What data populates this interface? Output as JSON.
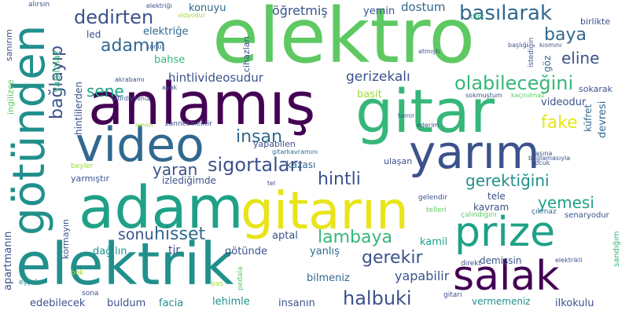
{
  "palette": {
    "deep_purple": "#440154",
    "dark_blue": "#3b528b",
    "blue": "#31688e",
    "teal": "#21908c",
    "green_teal": "#1fa187",
    "green": "#35b779",
    "light_green": "#5ec962",
    "lime": "#a0da39",
    "yellow": "#e8e419"
  },
  "words": [
    {
      "text": "elektro",
      "color": "#5ec962"
    },
    {
      "text": "anlamış",
      "color": "#440154"
    },
    {
      "text": "gitar",
      "color": "#35b779"
    },
    {
      "text": "video",
      "color": "#31688e"
    },
    {
      "text": "yarım",
      "color": "#3b528b"
    },
    {
      "text": "adam",
      "color": "#1fa187"
    },
    {
      "text": "gitarın",
      "color": "#e8e419"
    },
    {
      "text": "prize",
      "color": "#1fa187"
    },
    {
      "text": "elektrik",
      "color": "#21908c"
    },
    {
      "text": "salak",
      "color": "#440154"
    },
    {
      "text": "götünden",
      "color": "#21908c"
    },
    {
      "text": "dedirten",
      "color": "#3b528b"
    },
    {
      "text": "basılarak",
      "color": "#31688e"
    },
    {
      "text": "baya",
      "color": "#31688e"
    },
    {
      "text": "adamın",
      "color": "#31688e"
    },
    {
      "text": "eline",
      "color": "#3b528b"
    },
    {
      "text": "sene",
      "color": "#1fa187"
    },
    {
      "text": "olabileceğini",
      "color": "#35b779"
    },
    {
      "text": "bağlayıp",
      "color": "#3b528b"
    },
    {
      "text": "hintlivideosudur",
      "color": "#3b528b"
    },
    {
      "text": "gerizekalı",
      "color": "#3b528b"
    },
    {
      "text": "fake",
      "color": "#e8e419"
    },
    {
      "text": "insan",
      "color": "#31688e"
    },
    {
      "text": "yaran",
      "color": "#3b528b"
    },
    {
      "text": "sigortaları",
      "color": "#3b528b"
    },
    {
      "text": "hintli",
      "color": "#3b528b"
    },
    {
      "text": "gerektiğini",
      "color": "#21908c"
    },
    {
      "text": "yemesi",
      "color": "#1fa187"
    },
    {
      "text": "sonu",
      "color": "#3b528b"
    },
    {
      "text": "hisset",
      "color": "#31688e"
    },
    {
      "text": "lambaya",
      "color": "#35b779"
    },
    {
      "text": "gerekir",
      "color": "#3b528b"
    },
    {
      "text": "halbuki",
      "color": "#3b528b"
    },
    {
      "text": "yapabilir",
      "color": "#3b528b"
    },
    {
      "text": "öğretmiş",
      "color": "#3b528b"
    },
    {
      "text": "dostum",
      "color": "#31688e"
    },
    {
      "text": "yemin",
      "color": "#3b528b"
    },
    {
      "text": "konuyu",
      "color": "#31688e"
    },
    {
      "text": "elektriğe",
      "color": "#31688e"
    },
    {
      "text": "cihazları",
      "color": "#3b528b"
    },
    {
      "text": "led",
      "color": "#3b528b"
    },
    {
      "text": "bahse",
      "color": "#35b779"
    },
    {
      "text": "hintlilerden",
      "color": "#3b528b"
    },
    {
      "text": "yapılmaz",
      "color": "#35b779"
    },
    {
      "text": "sanırım",
      "color": "#3b528b"
    },
    {
      "text": "ingilizce",
      "color": "#5ec962"
    },
    {
      "text": "basit",
      "color": "#a0da39"
    },
    {
      "text": "videodur",
      "color": "#3b528b"
    },
    {
      "text": "devresi",
      "color": "#31688e"
    },
    {
      "text": "küfret",
      "color": "#31688e"
    },
    {
      "text": "göz",
      "color": "#31688e"
    },
    {
      "text": "sokarak",
      "color": "#3b528b"
    },
    {
      "text": "birlikte",
      "color": "#3b528b"
    },
    {
      "text": "istediğin",
      "color": "#3b528b"
    },
    {
      "text": "yarmıştır",
      "color": "#3b528b"
    },
    {
      "text": "izlediğimde",
      "color": "#3b528b"
    },
    {
      "text": "kazası",
      "color": "#31688e"
    },
    {
      "text": "yapabilen",
      "color": "#3b528b"
    },
    {
      "text": "ulaşan",
      "color": "#3b528b"
    },
    {
      "text": "tele",
      "color": "#3b528b"
    },
    {
      "text": "kavram",
      "color": "#3b528b"
    },
    {
      "text": "aptal",
      "color": "#3b528b"
    },
    {
      "text": "kamil",
      "color": "#1fa187"
    },
    {
      "text": "tir",
      "color": "#3b528b"
    },
    {
      "text": "götünde",
      "color": "#3b528b"
    },
    {
      "text": "dağılın",
      "color": "#21908c"
    },
    {
      "text": "yanlış",
      "color": "#31688e"
    },
    {
      "text": "demişsin",
      "color": "#3b528b"
    },
    {
      "text": "bilmeniz",
      "color": "#31688e"
    },
    {
      "text": "kormayın",
      "color": "#3b528b"
    },
    {
      "text": "apartmanın",
      "color": "#3b528b"
    },
    {
      "text": "edebilecek",
      "color": "#3b528b"
    },
    {
      "text": "buldum",
      "color": "#3b528b"
    },
    {
      "text": "facia",
      "color": "#21908c"
    },
    {
      "text": "lehimle",
      "color": "#21908c"
    },
    {
      "text": "insanın",
      "color": "#3b528b"
    },
    {
      "text": "vermemeniz",
      "color": "#21908c"
    },
    {
      "text": "ilkokulu",
      "color": "#3b528b"
    },
    {
      "text": "sandığım",
      "color": "#35b779"
    },
    {
      "text": "senaryodur",
      "color": "#3b528b"
    },
    {
      "text": "çıkmaz",
      "color": "#31688e"
    },
    {
      "text": "çalındığını",
      "color": "#5ec962"
    },
    {
      "text": "telleri",
      "color": "#5ec962"
    },
    {
      "text": "gelendir",
      "color": "#3b528b"
    },
    {
      "text": "direkt",
      "color": "#3b528b"
    },
    {
      "text": "gitarı",
      "color": "#3b528b"
    },
    {
      "text": "sona",
      "color": "#3b528b"
    },
    {
      "text": "pedala",
      "color": "#5ec962"
    },
    {
      "text": "bas",
      "color": "#a0da39"
    },
    {
      "text": "bok",
      "color": "#a0da39"
    },
    {
      "text": "eşşek",
      "color": "#21908c"
    },
    {
      "text": "elektrikli",
      "color": "#3b528b"
    },
    {
      "text": "beyler",
      "color": "#a0da39"
    },
    {
      "text": "tel",
      "color": "#3b528b"
    },
    {
      "text": "gitarkavramını",
      "color": "#31688e"
    },
    {
      "text": "başına",
      "color": "#3b528b"
    },
    {
      "text": "çocuk",
      "color": "#3b528b"
    },
    {
      "text": "bağlamasıyla",
      "color": "#3b528b"
    },
    {
      "text": "tamir",
      "color": "#31688e"
    },
    {
      "text": "ederim",
      "color": "#3b528b"
    },
    {
      "text": "sokmuştum",
      "color": "#3b528b"
    },
    {
      "text": "kaçınılmaz",
      "color": "#5ec962"
    },
    {
      "text": "lehim",
      "color": "#a0da39"
    },
    {
      "text": "zannetmektir",
      "color": "#3b528b"
    },
    {
      "text": "bitirdiyseniz",
      "color": "#3b528b"
    },
    {
      "text": "ayak",
      "color": "#3b528b"
    },
    {
      "text": "akrabamı",
      "color": "#3b528b"
    },
    {
      "text": "konu",
      "color": "#3b528b"
    },
    {
      "text": "atmıştı",
      "color": "#3b528b"
    },
    {
      "text": "kısmını",
      "color": "#3b528b"
    },
    {
      "text": "başlığı",
      "color": "#3b528b"
    },
    {
      "text": "türk",
      "color": "#35b779"
    },
    {
      "text": "vidyodur",
      "color": "#a0da39"
    },
    {
      "text": "elektriği",
      "color": "#3b528b"
    },
    {
      "text": "alırsın",
      "color": "#3b528b"
    }
  ]
}
